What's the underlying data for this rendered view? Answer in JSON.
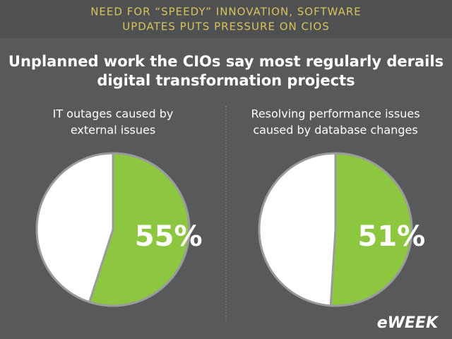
{
  "header": [
    "NEED FOR “SPEEDY” INNOVATION, SOFTWARE",
    "UPDATES PUTS PRESSURE ON CIOS"
  ],
  "title": [
    "Unplanned work the CIOs say most regularly derails",
    "digital transformation projects"
  ],
  "logo": "eWEEK",
  "chart_data": [
    {
      "type": "pie",
      "title": [
        "IT outages caused by",
        "external issues"
      ],
      "values": [
        55
      ],
      "value_labels": [
        "55%"
      ],
      "color": "#8dc63f"
    },
    {
      "type": "pie",
      "title": [
        "Resolving performance issues",
        "caused by database changes"
      ],
      "values": [
        51
      ],
      "value_labels": [
        "51%"
      ],
      "color": "#8dc63f"
    }
  ]
}
